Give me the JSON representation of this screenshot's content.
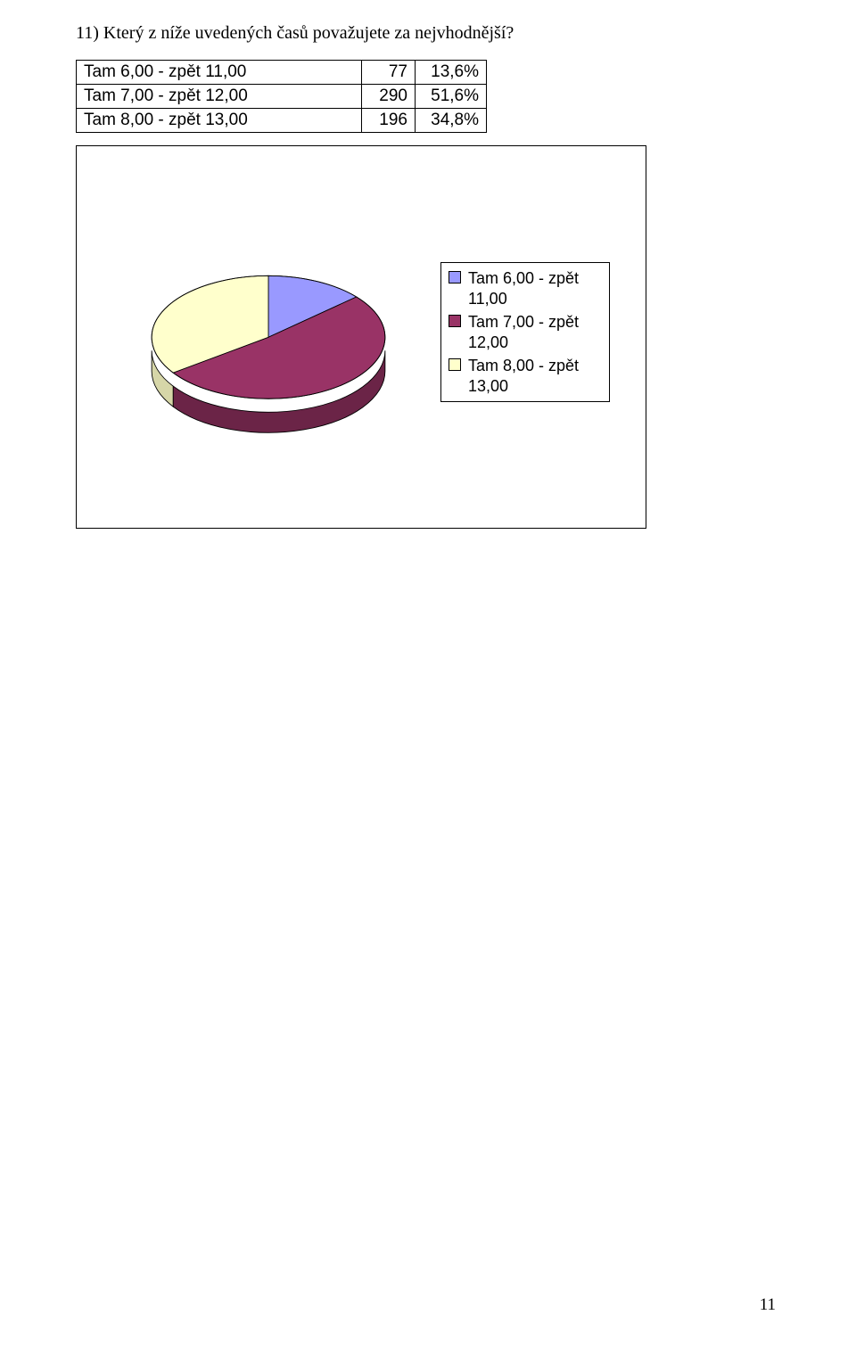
{
  "question": "11) Který z níže uvedených časů považujete za nejvhodnější?",
  "table": {
    "rows": [
      {
        "label": "Tam 6,00 - zpět 11,00",
        "count": "77",
        "pct": "13,6%"
      },
      {
        "label": "Tam 7,00 - zpět 12,00",
        "count": "290",
        "pct": "51,6%"
      },
      {
        "label": "Tam 8,00 - zpět 13,00",
        "count": "196",
        "pct": "34,8%"
      }
    ]
  },
  "chart": {
    "type": "pie",
    "slices": [
      {
        "label_line1": "Tam 6,00 - zpět",
        "label_line2": "11,00",
        "value": 13.6,
        "color": "#9999ff",
        "side_color": "#7a7acc"
      },
      {
        "label_line1": "Tam 7,00 - zpět",
        "label_line2": "12,00",
        "value": 51.6,
        "color": "#993366",
        "side_color": "#6b2447"
      },
      {
        "label_line1": "Tam 8,00 - zpět",
        "label_line2": "13,00",
        "value": 34.8,
        "color": "#ffffcc",
        "side_color": "#d6d6a8"
      }
    ],
    "top_highlight": "#ffffff",
    "legend_font_size": 18
  },
  "page_number": "11"
}
